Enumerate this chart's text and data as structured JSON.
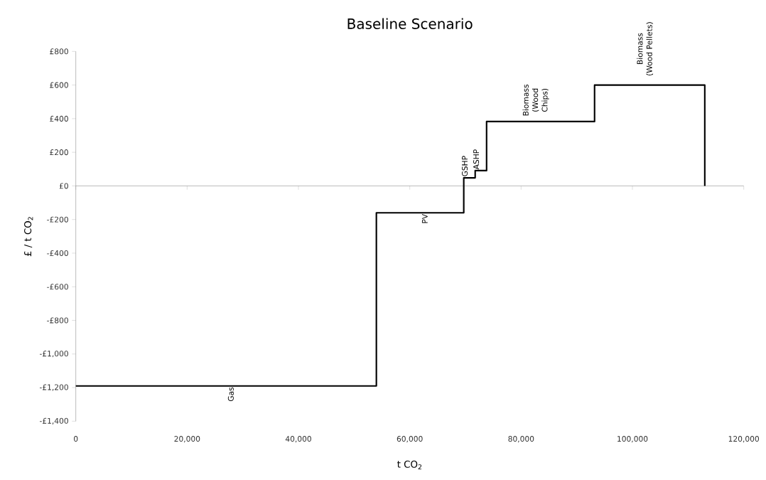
{
  "chart_data": {
    "type": "step",
    "title": "Baseline Scenario",
    "xlabel": "t CO$_{2}$",
    "ylabel": "£ / t CO$_{2}$",
    "x": [
      0,
      54000,
      69700,
      71750,
      73800,
      93200,
      113000
    ],
    "series": [
      {
        "color": "#000000",
        "values": [
          -1190,
          -160,
          48,
          91,
          383,
          600,
          0
        ]
      }
    ],
    "xlim": [
      0,
      120000
    ],
    "xticks": [
      0,
      {
        "value": 20000,
        "label": "20,000"
      },
      {
        "value": 40000,
        "label": "40,000"
      },
      {
        "value": 60000,
        "label": "60,000"
      },
      {
        "value": 80000,
        "label": "80,000"
      },
      {
        "value": 100000,
        "label": "100,000"
      },
      {
        "value": 120000,
        "label": "120,000"
      }
    ],
    "ylim": [
      -1400,
      800
    ],
    "yticks": [
      {
        "value": -1400,
        "label": "-£1,400"
      },
      {
        "value": -1200,
        "label": "-£1,200"
      },
      {
        "value": -1000,
        "label": "-£1,000"
      },
      {
        "value": -800,
        "label": "-£800"
      },
      {
        "value": -600,
        "label": "-£600"
      },
      {
        "value": -400,
        "label": "-£400"
      },
      {
        "value": -200,
        "label": "-£200"
      },
      {
        "value": 0,
        "label": "£0"
      },
      {
        "value": 200,
        "label": "£200"
      },
      {
        "value": 400,
        "label": "£400"
      },
      {
        "value": 600,
        "label": "£600"
      },
      {
        "value": 800,
        "label": "£800"
      }
    ],
    "annotations": [
      "Gas",
      "PV",
      "GSHP",
      "ASHP",
      "Biomass (Wood Chips)",
      "Biomass (Wood Pellets)"
    ]
  }
}
